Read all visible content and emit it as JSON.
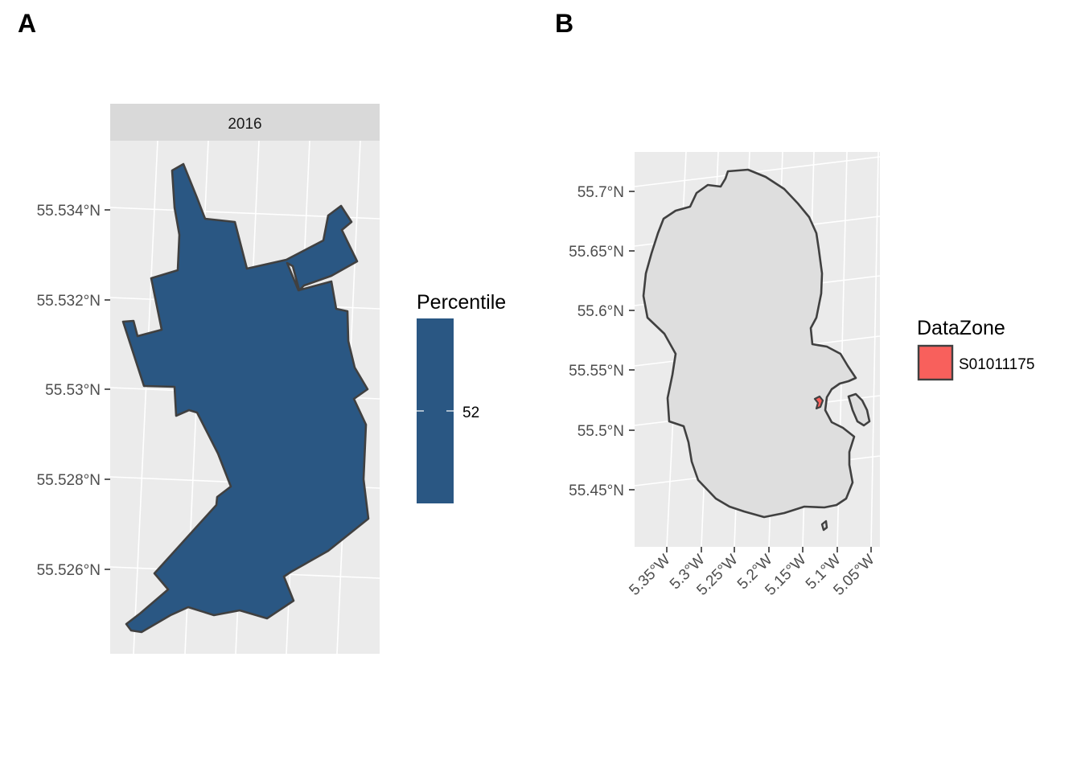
{
  "panels": {
    "a": {
      "letter": "A",
      "facet_label": "2016",
      "lat_ticks": [
        "55.534°N",
        "55.532°N",
        "55.53°N",
        "55.528°N",
        "55.526°N"
      ],
      "legend": {
        "title": "Percentile",
        "value_label": "52",
        "fill_color": "#2a5783"
      }
    },
    "b": {
      "letter": "B",
      "lat_ticks": [
        "55.7°N",
        "55.65°N",
        "55.6°N",
        "55.55°N",
        "55.5°N",
        "55.45°N"
      ],
      "lon_ticks": [
        "5.35°W",
        "5.3°W",
        "5.25°W",
        "5.2°W",
        "5.15°W",
        "5.1°W",
        "5.05°W"
      ],
      "island_fill": "#dedede",
      "legend": {
        "title": "DataZone",
        "entry_label": "S01011175",
        "fill_color": "#f8605c"
      }
    }
  },
  "chart_data": [
    {
      "type": "map",
      "title": "",
      "facet": "2016",
      "y_axis_ticks": [
        55.534,
        55.532,
        55.53,
        55.528,
        55.526
      ],
      "fill_variable": "Percentile",
      "values": [
        52
      ]
    },
    {
      "type": "map",
      "title": "",
      "y_axis_ticks": [
        55.7,
        55.65,
        55.6,
        55.55,
        55.5,
        55.45
      ],
      "x_axis_ticks": [
        -5.35,
        -5.3,
        -5.25,
        -5.2,
        -5.15,
        -5.1,
        -5.05
      ],
      "fill_variable": "DataZone",
      "categories": [
        "S01011175"
      ]
    }
  ]
}
